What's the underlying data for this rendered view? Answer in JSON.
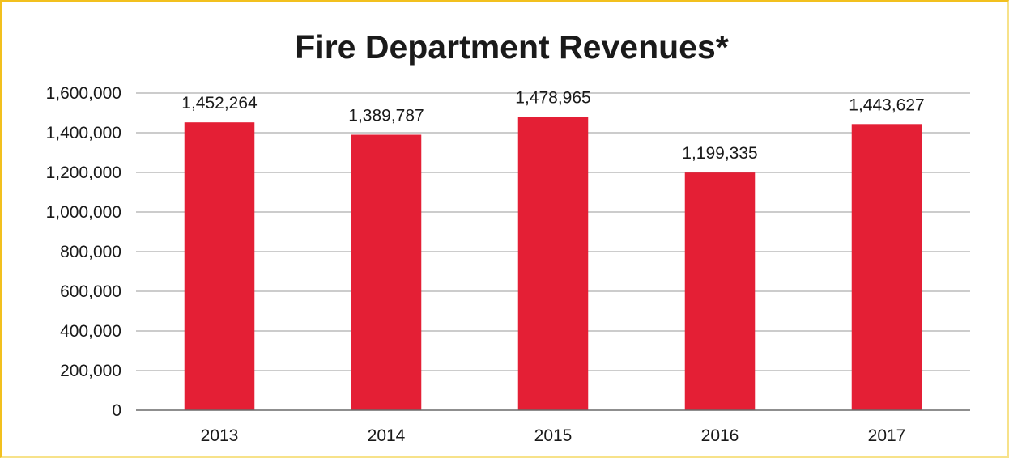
{
  "colors": {
    "bar": "#e41f35",
    "grid": "#9a9a9a",
    "axis": "#6a6a6a",
    "frame": "#f2c01e"
  },
  "chart_data": {
    "type": "bar",
    "title": "Fire Department Revenues*",
    "xlabel": "",
    "ylabel": "",
    "categories": [
      "2013",
      "2014",
      "2015",
      "2016",
      "2017"
    ],
    "values": [
      1452264,
      1389787,
      1478965,
      1199335,
      1443627
    ],
    "data_labels": [
      "1,452,264",
      "1,389,787",
      "1,478,965",
      "1,199,335",
      "1,443,627"
    ],
    "ylim": [
      0,
      1600000
    ],
    "yticks": [
      0,
      200000,
      400000,
      600000,
      800000,
      1000000,
      1200000,
      1400000,
      1600000
    ],
    "ytick_labels": [
      "0",
      "200,000",
      "400,000",
      "600,000",
      "800,000",
      "1,000,000",
      "1,200,000",
      "1,400,000",
      "1,600,000"
    ],
    "grid": true,
    "legend": "none"
  }
}
